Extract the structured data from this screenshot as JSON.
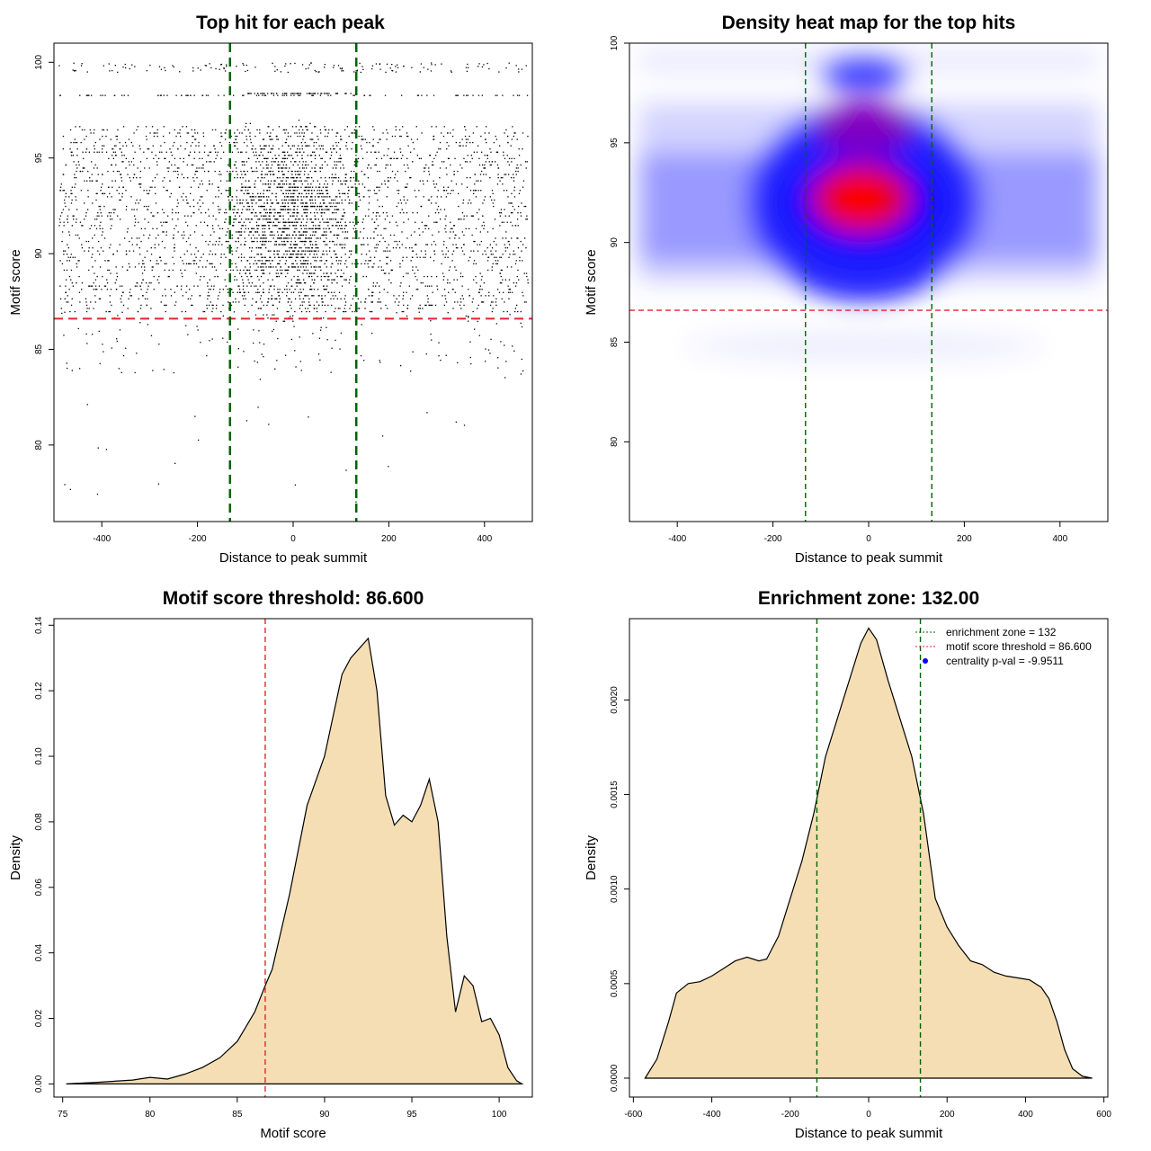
{
  "chart_data": [
    {
      "type": "scatter",
      "title": "Top hit for each peak",
      "xlabel": "Distance to peak summit",
      "ylabel": "Motif score",
      "xlim": [
        -500,
        500
      ],
      "ylim": [
        76,
        101
      ],
      "x_ticks": [
        "-400",
        "-200",
        "0",
        "200",
        "400"
      ],
      "x_tick_values": [
        -400,
        -200,
        0,
        200,
        400
      ],
      "y_ticks": [
        "80",
        "85",
        "90",
        "95",
        "100"
      ],
      "y_tick_values": [
        80,
        85,
        90,
        95,
        100
      ],
      "threshold_y": 86.6,
      "enrichment_x": [
        -132,
        132
      ],
      "colors": {
        "points": "#000000",
        "threshold": "#e8232d",
        "zone": "#006400"
      }
    },
    {
      "type": "heatmap",
      "title": "Density heat map for the top hits",
      "xlabel": "Distance to peak summit",
      "ylabel": "Motif score",
      "xlim": [
        -500,
        500
      ],
      "ylim": [
        76,
        100
      ],
      "x_ticks": [
        "-400",
        "-200",
        "0",
        "200",
        "400"
      ],
      "x_tick_values": [
        -400,
        -200,
        0,
        200,
        400
      ],
      "y_ticks": [
        "80",
        "85",
        "90",
        "95",
        "100"
      ],
      "y_tick_values": [
        80,
        85,
        90,
        95,
        100
      ],
      "threshold_y": 86.6,
      "enrichment_x": [
        -132,
        132
      ],
      "colormap": [
        "#ffffff",
        "#0000ff",
        "#ff0000"
      ],
      "colors": {
        "threshold": "#e8232d",
        "zone": "#006400"
      }
    },
    {
      "type": "area",
      "title": "Motif score threshold: 86.600",
      "xlabel": "Motif score",
      "ylabel": "Density",
      "xlim": [
        74.5,
        101.9
      ],
      "ylim": [
        -0.004,
        0.142
      ],
      "x_ticks": [
        "75",
        "80",
        "85",
        "90",
        "95",
        "100"
      ],
      "x_tick_values": [
        75,
        80,
        85,
        90,
        95,
        100
      ],
      "y_ticks": [
        "0.00",
        "0.02",
        "0.04",
        "0.06",
        "0.08",
        "0.10",
        "0.12",
        "0.14"
      ],
      "y_tick_values": [
        0,
        0.02,
        0.04,
        0.06,
        0.08,
        0.1,
        0.12,
        0.14
      ],
      "threshold_x": 86.6,
      "x": [
        75.2,
        77,
        79,
        80,
        81,
        82,
        83,
        84,
        85,
        86,
        86.6,
        87,
        88,
        89,
        90,
        91,
        91.5,
        92,
        92.5,
        93,
        93.5,
        94,
        94.5,
        95,
        95.5,
        96,
        96.5,
        97,
        97.5,
        98,
        98.5,
        99,
        99.5,
        100,
        100.5,
        101,
        101.3
      ],
      "y": [
        0,
        0.0005,
        0.0012,
        0.002,
        0.0015,
        0.003,
        0.005,
        0.008,
        0.013,
        0.022,
        0.03,
        0.035,
        0.058,
        0.085,
        0.1,
        0.125,
        0.13,
        0.133,
        0.136,
        0.12,
        0.088,
        0.079,
        0.082,
        0.08,
        0.085,
        0.093,
        0.08,
        0.045,
        0.022,
        0.033,
        0.03,
        0.019,
        0.02,
        0.015,
        0.005,
        0.001,
        0
      ],
      "colors": {
        "fill": "#f5deb3",
        "line": "#000000",
        "threshold": "#e8232d"
      }
    },
    {
      "type": "area",
      "title": "Enrichment zone: 132.00",
      "xlabel": "Distance to peak summit",
      "ylabel": "Density",
      "xlim": [
        -610,
        610
      ],
      "ylim": [
        -0.0001,
        0.00243
      ],
      "x_ticks": [
        "-600",
        "-400",
        "-200",
        "0",
        "200",
        "400",
        "600"
      ],
      "x_tick_values": [
        -600,
        -400,
        -200,
        0,
        200,
        400,
        600
      ],
      "y_ticks": [
        "0.0000",
        "0.0005",
        "0.0010",
        "0.0015",
        "0.0020"
      ],
      "y_tick_values": [
        0,
        0.0005,
        0.001,
        0.0015,
        0.002
      ],
      "enrichment_x": [
        -132,
        132
      ],
      "x": [
        -570,
        -540,
        -510,
        -490,
        -460,
        -430,
        -400,
        -370,
        -340,
        -310,
        -280,
        -260,
        -230,
        -200,
        -170,
        -140,
        -110,
        -80,
        -50,
        -20,
        0,
        20,
        50,
        80,
        110,
        140,
        170,
        200,
        230,
        260,
        290,
        320,
        350,
        380,
        410,
        440,
        460,
        480,
        500,
        520,
        545,
        570
      ],
      "y": [
        0,
        0.0001,
        0.0003,
        0.00045,
        0.0005,
        0.00051,
        0.00054,
        0.00058,
        0.00062,
        0.00064,
        0.00062,
        0.00063,
        0.00075,
        0.00095,
        0.00115,
        0.0014,
        0.0017,
        0.0019,
        0.0021,
        0.0023,
        0.00238,
        0.00232,
        0.0021,
        0.0019,
        0.0017,
        0.0014,
        0.00095,
        0.0008,
        0.0007,
        0.00062,
        0.0006,
        0.00056,
        0.00054,
        0.00053,
        0.00052,
        0.00048,
        0.00042,
        0.0003,
        0.00015,
        5e-05,
        1e-05,
        0
      ],
      "legend": [
        {
          "label": "enrichment zone = 132",
          "kind": "dotted-line",
          "color": "#006400"
        },
        {
          "label": "motif score threshold = 86.600",
          "kind": "dotted-line",
          "color": "#e8232d"
        },
        {
          "label": "centrality p-val = -9.9511",
          "kind": "point",
          "color": "#0000ff"
        }
      ],
      "legend_position": "top-right",
      "colors": {
        "fill": "#f5deb3",
        "line": "#000000",
        "zone": "#006400"
      }
    }
  ]
}
